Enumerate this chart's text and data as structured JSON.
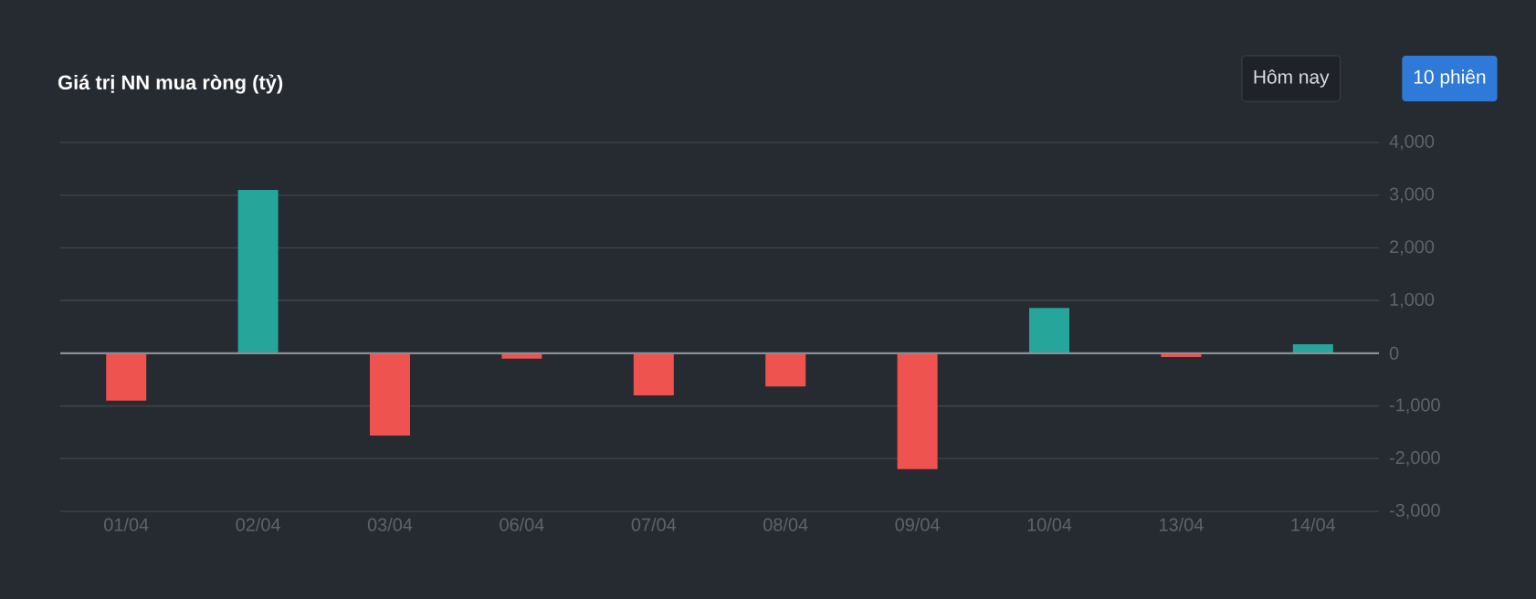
{
  "chart_data": {
    "type": "bar",
    "title": "Giá trị NN mua ròng (tỷ)",
    "categories": [
      "01/04",
      "02/04",
      "03/04",
      "06/04",
      "07/04",
      "08/04",
      "09/04",
      "10/04",
      "13/04",
      "14/04"
    ],
    "values": [
      -900,
      3100,
      -1560,
      -100,
      -800,
      -630,
      -2200,
      860,
      -70,
      170
    ],
    "colors": [
      "#ef5350",
      "#26a69a",
      "#ef5350",
      "#ef5350",
      "#ef5350",
      "#ef5350",
      "#ef5350",
      "#26a69a",
      "#ef5350",
      "#26a69a"
    ],
    "ylim": [
      -3000,
      4000
    ],
    "yticks": [
      {
        "value": -3000,
        "label": "-3,000"
      },
      {
        "value": -2000,
        "label": "-2,000"
      },
      {
        "value": -1000,
        "label": "-1,000"
      },
      0,
      {
        "value": 1000,
        "label": "1,000"
      },
      {
        "value": 2000,
        "label": "2,000"
      },
      {
        "value": 3000,
        "label": "3,000"
      },
      {
        "value": 4000,
        "label": "4,000"
      }
    ],
    "grid": "y",
    "annotations": [
      "Hôm nay",
      "10 phiên"
    ]
  }
}
